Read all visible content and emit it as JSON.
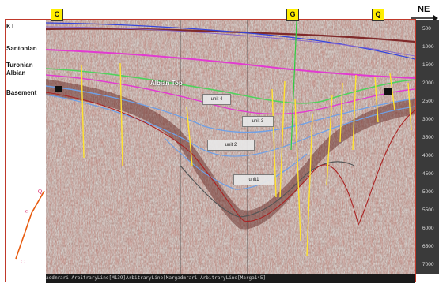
{
  "horizons": {
    "kt": "KT",
    "santonian": "Santonian",
    "turonian": "Turonian",
    "albian": "Albian",
    "basement": "Basement"
  },
  "top_markers": {
    "c": "C",
    "g": "G",
    "q": "Q"
  },
  "direction": "NE",
  "interpreted_labels": {
    "albian_top": "Albian Top",
    "unit4": "unit 4",
    "unit3": "unit 3",
    "unit2": "unit 2",
    "unit1": "unit1"
  },
  "depth_ticks": [
    "500",
    "1000",
    "1500",
    "2000",
    "2500",
    "3000",
    "3500",
    "4000",
    "4500",
    "5000",
    "5500",
    "6000",
    "6500",
    "7000"
  ],
  "bottom_strip": "asdmrari    ArbitraryLine[M139]ArbitraryLine[Margadmrari  ArbitraryLine[Marga145]",
  "inset_labels": {
    "q": "Q",
    "g": "G",
    "c": "C"
  },
  "colors": {
    "frame": "#c0392b",
    "kt": "#7f2a2a",
    "santonian": "#e23bd1",
    "turonian": "#4fd25c",
    "albian_top": "#6fa0e6",
    "basement": "#555555",
    "faults": "#ffe22e",
    "inset_curve": "#e85c10"
  }
}
